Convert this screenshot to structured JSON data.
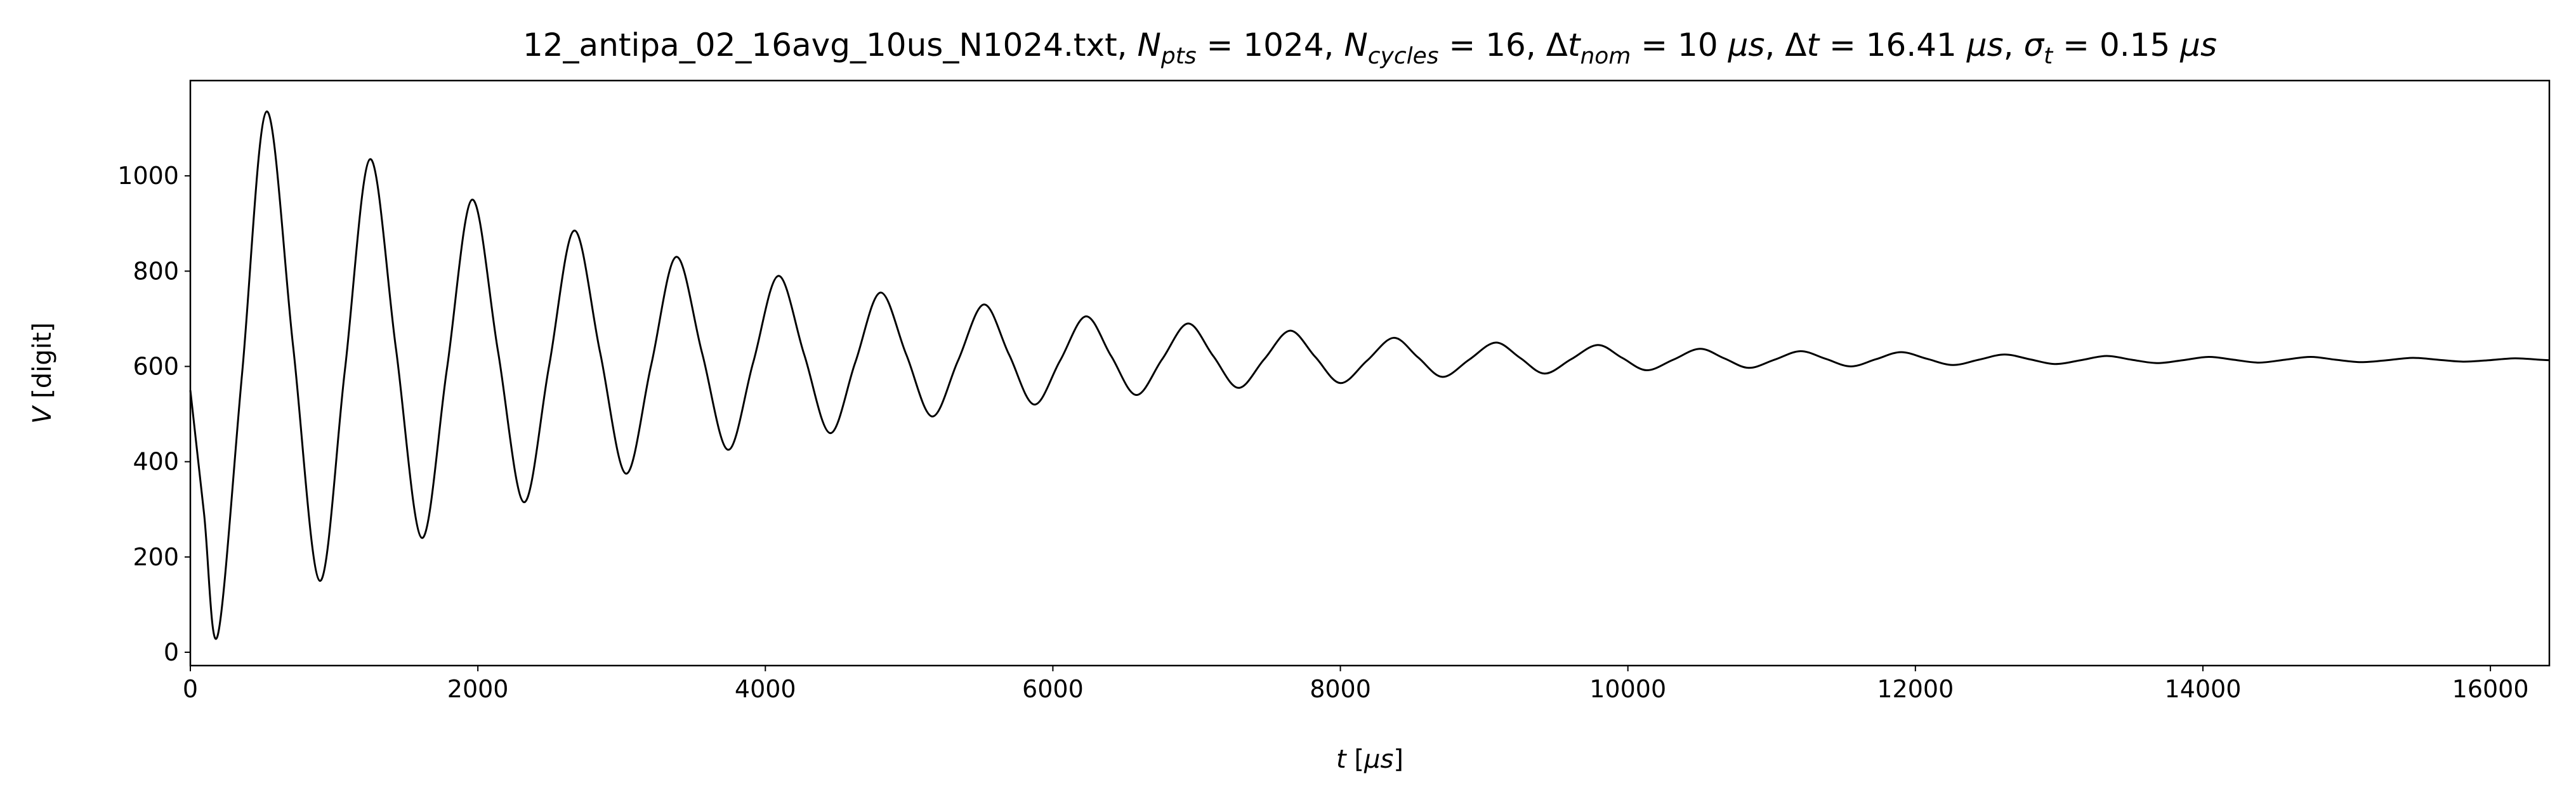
{
  "chart_data": {
    "type": "line",
    "title": [
      "12_antipa_02_16avg_10us_N1024.txt, ",
      "N",
      "pts",
      " = 1024, ",
      "N",
      "cycles",
      " = 16, Δ",
      "t",
      "nom",
      " = 10 ",
      "μs",
      ", Δ",
      "t",
      " = 16.41 ",
      "μs",
      ", ",
      "σ",
      "t",
      " = 0.15 ",
      "μs"
    ],
    "xlabel": [
      "t",
      " [",
      "μs",
      "]"
    ],
    "ylabel": [
      "V",
      " [digit]"
    ],
    "xlim": [
      0,
      16410
    ],
    "ylim": [
      -28,
      1200
    ],
    "xticks": [
      0,
      2000,
      4000,
      6000,
      8000,
      10000,
      12000,
      14000,
      16000
    ],
    "yticks": [
      0,
      200,
      400,
      600,
      800,
      1000
    ],
    "grid": false,
    "x": [
      0,
      95,
      190,
      360,
      530,
      715,
      900,
      1075,
      1250,
      1430,
      1610,
      1785,
      1960,
      2140,
      2320,
      2495,
      2670,
      2850,
      3030,
      3205,
      3380,
      3560,
      3740,
      3915,
      4090,
      4270,
      4450,
      4625,
      4800,
      4980,
      5160,
      5340,
      5520,
      5695,
      5870,
      6050,
      6230,
      6405,
      6580,
      6760,
      6940,
      7115,
      7290,
      7470,
      7650,
      7825,
      8000,
      8185,
      8370,
      8540,
      8710,
      8895,
      9080,
      9250,
      9420,
      9605,
      9790,
      9960,
      10130,
      10315,
      10500,
      10670,
      10840,
      11020,
      11200,
      11375,
      11550,
      11725,
      11900,
      12080,
      12260,
      12440,
      12620,
      12795,
      12970,
      13150,
      13330,
      13505,
      13680,
      13860,
      14040,
      14215,
      14390,
      14570,
      14750,
      14925,
      15100,
      15280,
      15460,
      15635,
      15810,
      15990,
      16170,
      16345,
      16410
    ],
    "series": [
      {
        "name": "V",
        "color": "#000000",
        "values": [
          550,
          292,
          35,
          585,
          1135,
          642,
          150,
          592,
          1035,
          638,
          240,
          595,
          950,
          632,
          315,
          600,
          885,
          630,
          375,
          602,
          830,
          628,
          425,
          608,
          790,
          625,
          460,
          608,
          755,
          625,
          495,
          612,
          730,
          625,
          520,
          612,
          705,
          622,
          540,
          615,
          690,
          622,
          555,
          615,
          675,
          620,
          565,
          612,
          660,
          619,
          578,
          614,
          650,
          618,
          585,
          615,
          645,
          618,
          592,
          614,
          637,
          617,
          597,
          614,
          632,
          616,
          600,
          615,
          630,
          616,
          603,
          614,
          625,
          615,
          605,
          613,
          622,
          614,
          607,
          613,
          620,
          614,
          608,
          614,
          620,
          614,
          609,
          613,
          618,
          614,
          610,
          613,
          617,
          614,
          613
        ]
      }
    ]
  }
}
